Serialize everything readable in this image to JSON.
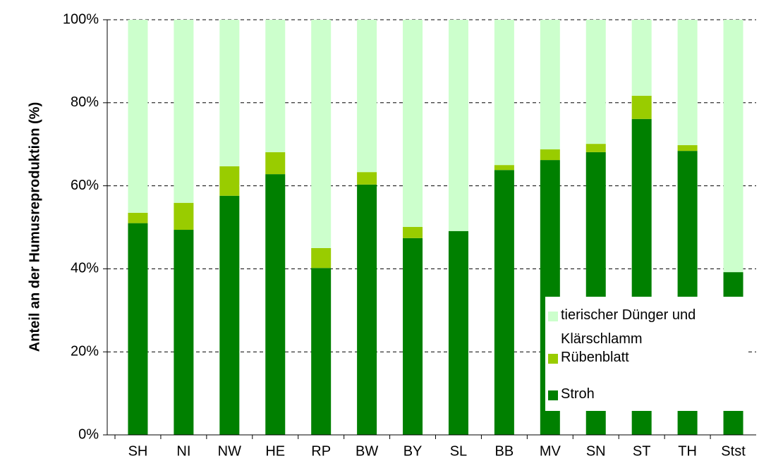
{
  "chart_data": {
    "type": "stacked_bar",
    "y_label": "Anteil an der Humusreproduktion (%)",
    "categories": [
      "SH",
      "NI",
      "NW",
      "HE",
      "RP",
      "BW",
      "BY",
      "SL",
      "BB",
      "MV",
      "SN",
      "ST",
      "TH",
      "Stst"
    ],
    "series": [
      {
        "name": "Stroh",
        "color": "#008000",
        "values": [
          51,
          49.4,
          57.6,
          62.8,
          40.2,
          60.3,
          47.4,
          49.1,
          63.8,
          66.2,
          68.1,
          76.1,
          68.4,
          39.2
        ]
      },
      {
        "name": "Rübenblatt",
        "color": "#99cc00",
        "values": [
          2.5,
          6.5,
          7.1,
          5.3,
          4.8,
          3,
          2.7,
          0,
          1.2,
          2.6,
          2,
          5.6,
          1.4,
          0
        ]
      },
      {
        "name": "tierischer Dünger und Klärschlamm",
        "color": "#ccffcc",
        "values": [
          46.5,
          44.1,
          35.3,
          31.9,
          55,
          36.7,
          49.9,
          50.9,
          35,
          31.2,
          29.9,
          18.3,
          30.2,
          60.8
        ]
      }
    ],
    "ylim": [
      0,
      100
    ],
    "yticks": [
      {
        "value": 0,
        "label": "0%"
      },
      {
        "value": 20,
        "label": "20%"
      },
      {
        "value": 40,
        "label": "40%"
      },
      {
        "value": 60,
        "label": "60%"
      },
      {
        "value": 80,
        "label": "80%"
      },
      {
        "value": 100,
        "label": "100%"
      }
    ],
    "grid": true,
    "legend": "lower right"
  }
}
